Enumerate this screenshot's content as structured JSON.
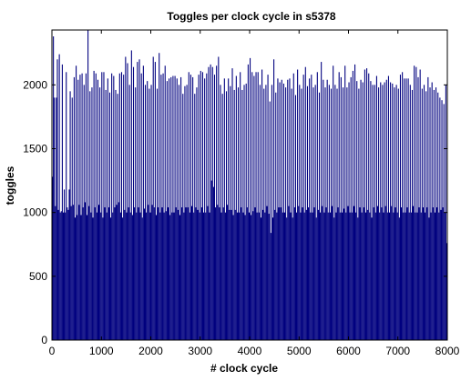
{
  "chart_data": {
    "type": "bar",
    "title": "Toggles per clock cycle in s5378",
    "xlabel": "# clock cycle",
    "ylabel": "toggles",
    "xlim": [
      0,
      8000
    ],
    "ylim": [
      0,
      2430
    ],
    "xticks": [
      0,
      1000,
      2000,
      3000,
      4000,
      5000,
      6000,
      7000,
      8000
    ],
    "yticks": [
      0,
      500,
      1000,
      1500,
      2000
    ],
    "xtick_labels": [
      "0",
      "1000",
      "2000",
      "3000",
      "4000",
      "5000",
      "6000",
      "7000",
      "8000"
    ],
    "ytick_labels": [
      "0",
      "500",
      "1000",
      "1500",
      "2000"
    ],
    "grid": false,
    "colors": {
      "bar": "#00007f",
      "axes": "#000000",
      "background": "#ffffff"
    },
    "series": [
      {
        "values_note": "",
        "bin_width": 20,
        "x": [
          0,
          20,
          40,
          60,
          80,
          100,
          120,
          140,
          160,
          180,
          200,
          220,
          240,
          260,
          280,
          300,
          320,
          340,
          360,
          380,
          400,
          420,
          440,
          460,
          480,
          500,
          520,
          540,
          560,
          580,
          600,
          620,
          640,
          660,
          680,
          700,
          720,
          740,
          760,
          780,
          800,
          820,
          840,
          860,
          880,
          900,
          920,
          940,
          960,
          980,
          1000,
          1020,
          1040,
          1060,
          1080,
          1100,
          1120,
          1140,
          1160,
          1180,
          1200,
          1220,
          1240,
          1260,
          1280,
          1300,
          1320,
          1340,
          1360,
          1380,
          1400,
          1420,
          1440,
          1460,
          1480,
          1500,
          1520,
          1540,
          1560,
          1580,
          1600,
          1620,
          1640,
          1660,
          1680,
          1700,
          1720,
          1740,
          1760,
          1780,
          1800,
          1820,
          1840,
          1860,
          1880,
          1900,
          1920,
          1940,
          1960,
          1980,
          2000,
          2020,
          2040,
          2060,
          2080,
          2100,
          2120,
          2140,
          2160,
          2180,
          2200,
          2220,
          2240,
          2260,
          2280,
          2300,
          2320,
          2340,
          2360,
          2380,
          2400,
          2420,
          2440,
          2460,
          2480,
          2500,
          2520,
          2540,
          2560,
          2580,
          2600,
          2620,
          2640,
          2660,
          2680,
          2700,
          2720,
          2740,
          2760,
          2780,
          2800,
          2820,
          2840,
          2860,
          2880,
          2900,
          2920,
          2940,
          2960,
          2980,
          3000,
          3020,
          3040,
          3060,
          3080,
          3100,
          3120,
          3140,
          3160,
          3180,
          3200,
          3220,
          3240,
          3260,
          3280,
          3300,
          3320,
          3340,
          3360,
          3380,
          3400,
          3420,
          3440,
          3460,
          3480,
          3500,
          3520,
          3540,
          3560,
          3580,
          3600,
          3620,
          3640,
          3660,
          3680,
          3700,
          3720,
          3740,
          3760,
          3780,
          3800,
          3820,
          3840,
          3860,
          3880,
          3900,
          3920,
          3940,
          3960,
          3980,
          4000,
          4020,
          4040,
          4060,
          4080,
          4100,
          4120,
          4140,
          4160,
          4180,
          4200,
          4220,
          4240,
          4260,
          4280,
          4300,
          4320,
          4340,
          4360,
          4380,
          4400,
          4420,
          4440,
          4460,
          4480,
          4500,
          4520,
          4540,
          4560,
          4580,
          4600,
          4620,
          4640,
          4660,
          4680,
          4700,
          4720,
          4740,
          4760,
          4780,
          4800,
          4820,
          4840,
          4860,
          4880,
          4900,
          4920,
          4940,
          4960,
          4980,
          5000,
          5020,
          5040,
          5060,
          5080,
          5100,
          5120,
          5140,
          5160,
          5180,
          5200,
          5220,
          5240,
          5260,
          5280,
          5300,
          5320,
          5340,
          5360,
          5380,
          5400,
          5420,
          5440,
          5460,
          5480,
          5500,
          5520,
          5540,
          5560,
          5580,
          5600,
          5620,
          5640,
          5660,
          5680,
          5700,
          5720,
          5740,
          5760,
          5780,
          5800,
          5820,
          5840,
          5860,
          5880,
          5900,
          5920,
          5940,
          5960,
          5980,
          6000,
          6020,
          6040,
          6060,
          6080,
          6100,
          6120,
          6140,
          6160,
          6180,
          6200,
          6220,
          6240,
          6260,
          6280,
          6300,
          6320,
          6340,
          6360,
          6380,
          6400,
          6420,
          6440,
          6460,
          6480,
          6500,
          6520,
          6540,
          6560,
          6580,
          6600,
          6620,
          6640,
          6660,
          6680,
          6700,
          6720,
          6740,
          6760,
          6780,
          6800,
          6820,
          6840,
          6860,
          6880,
          6900,
          6920,
          6940,
          6960,
          6980,
          7000,
          7020,
          7040,
          7060,
          7080,
          7100,
          7120,
          7140,
          7160,
          7180,
          7200,
          7220,
          7240,
          7260,
          7280,
          7300,
          7320,
          7340,
          7360,
          7380,
          7400,
          7420,
          7440,
          7460,
          7480,
          7500,
          7520,
          7540,
          7560,
          7580,
          7600,
          7620,
          7640,
          7660,
          7680,
          7700,
          7720,
          7740,
          7760,
          7780,
          7800,
          7820,
          7840,
          7860,
          7880,
          7900,
          7920,
          7940,
          7960,
          7980
        ],
        "values": [
          1280,
          2380,
          1900,
          1050,
          1900,
          2200,
          1020,
          2240,
          1000,
          1010,
          2160,
          1000,
          1180,
          1000,
          2100,
          1040,
          1020,
          1180,
          1950,
          1050,
          1900,
          1060,
          2060,
          960,
          2150,
          980,
          2040,
          1060,
          2080,
          980,
          2090,
          1040,
          2000,
          1080,
          2090,
          980,
          2430,
          1050,
          1950,
          1000,
          1980,
          960,
          2110,
          1040,
          2090,
          1000,
          2040,
          1060,
          1980,
          1000,
          2100,
          960,
          2100,
          1040,
          1960,
          1000,
          2050,
          1040,
          1940,
          960,
          2090,
          1000,
          2070,
          1040,
          1960,
          1060,
          1930,
          1080,
          2090,
          1000,
          2100,
          960,
          2080,
          1020,
          2220,
          1000,
          2170,
          1040,
          2000,
          1000,
          2270,
          980,
          2140,
          1040,
          1980,
          1000,
          2180,
          1040,
          2200,
          1000,
          2090,
          960,
          2150,
          1030,
          2000,
          1000,
          2030,
          1060,
          1970,
          1000,
          2000,
          1060,
          2220,
          1040,
          2180,
          980,
          1970,
          1040,
          2250,
          1000,
          2080,
          1040,
          2090,
          1000,
          2150,
          1010,
          2030,
          1040,
          2050,
          980,
          2060,
          1000,
          2070,
          1000,
          2070,
          1040,
          2050,
          1020,
          2000,
          980,
          2060,
          1040,
          1930,
          1000,
          1990,
          1040,
          2000,
          1040,
          2100,
          1000,
          2080,
          1050,
          2060,
          1000,
          1930,
          1040,
          1980,
          1020,
          2080,
          1000,
          2110,
          1040,
          2100,
          1000,
          2050,
          1000,
          2090,
          1050,
          2140,
          1000,
          2160,
          1250,
          2140,
          1200,
          2080,
          1040,
          2150,
          1060,
          2220,
          1040,
          2000,
          1000,
          1930,
          1040,
          2050,
          1000,
          1950,
          1060,
          2050,
          1020,
          1990,
          1020,
          2130,
          980,
          1960,
          1020,
          2070,
          1000,
          1980,
          1000,
          2100,
          1040,
          1960,
          1000,
          2000,
          980,
          2010,
          1040,
          2160,
          1000,
          2210,
          980,
          2100,
          1010,
          2070,
          1040,
          2100,
          1000,
          2100,
          1000,
          2000,
          960,
          2120,
          1020,
          1970,
          1000,
          2000,
          1050,
          2080,
          990,
          1870,
          840,
          2000,
          960,
          2200,
          1020,
          1940,
          1000,
          2050,
          1040,
          2020,
          1040,
          2040,
          1000,
          2010,
          1000,
          1980,
          960,
          2040,
          1050,
          2050,
          1000,
          1970,
          960,
          2090,
          1040,
          1920,
          1000,
          2120,
          1050,
          2000,
          1000,
          1970,
          1040,
          2080,
          1000,
          2140,
          1020,
          1990,
          1040,
          2050,
          1000,
          2080,
          1000,
          1980,
          1040,
          2000,
          960,
          2100,
          1020,
          1940,
          1000,
          2180,
          1050,
          2040,
          1000,
          1980,
          1040,
          2040,
          1000,
          2000,
          1000,
          1970,
          1050,
          2150,
          960,
          2000,
          1000,
          1970,
          1040,
          2100,
          1000,
          2060,
          1000,
          1980,
          1030,
          2150,
          1000,
          1980,
          1050,
          2020,
          1000,
          2060,
          1000,
          2110,
          1050,
          2160,
          1000,
          2030,
          960,
          1970,
          1040,
          2040,
          1000,
          2020,
          1040,
          2120,
          1000,
          2130,
          1020,
          2090,
          1000,
          2030,
          960,
          2000,
          1040,
          2000,
          1000,
          2070,
          1050,
          1980,
          1000,
          2020,
          1040,
          2000,
          1000,
          2020,
          1050,
          2040,
          1000,
          2070,
          1000,
          2020,
          1050,
          2010,
          1000,
          1980,
          1040,
          2000,
          1000,
          1970,
          960,
          2080,
          1040,
          2100,
          1000,
          2050,
          1000,
          2050,
          1040,
          2050,
          1000,
          2000,
          1000,
          1960,
          1050,
          2150,
          1000,
          2140,
          1000,
          2060,
          1040,
          2120,
          1000,
          1970,
          1040,
          2000,
          1000,
          1950,
          1040,
          2060,
          960,
          1980,
          1000,
          2020,
          1040,
          1960,
          1000,
          1980,
          1040,
          1940,
          1000,
          1900,
          1020,
          1880,
          1040,
          1850,
          1000,
          2000,
          760
        ]
      }
    ]
  }
}
